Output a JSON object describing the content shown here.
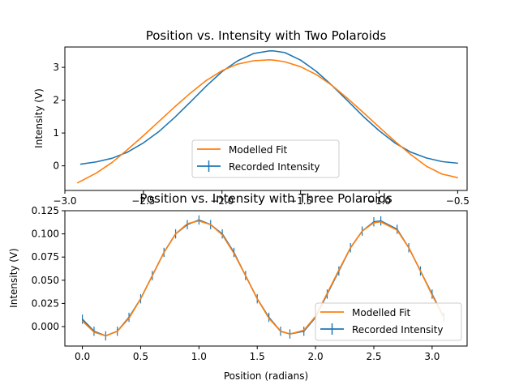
{
  "figure": {
    "background": "#ffffff"
  },
  "chart_data": [
    {
      "type": "line",
      "title": "Position vs. Intensity with Two Polaroids",
      "xlabel": "",
      "ylabel": "Intensity (V)",
      "xlim": [
        -3.0,
        -0.44
      ],
      "ylim": [
        -0.75,
        3.62
      ],
      "xticks": [
        -3.0,
        -2.5,
        -2.0,
        -1.5,
        -1.0,
        -0.5
      ],
      "xtick_labels": [
        "−3.0",
        "−2.5",
        "−2.0",
        "−1.5",
        "−1.0",
        "−0.5"
      ],
      "yticks": [
        0,
        1,
        2,
        3
      ],
      "ytick_labels": [
        "0",
        "1",
        "2",
        "3"
      ],
      "grid": false,
      "legend_position": "lower-center",
      "series": [
        {
          "name": "Recorded Intensity",
          "color": "#1f77b4",
          "kind": "errorbar-line",
          "x": [
            -2.9,
            -2.8,
            -2.7,
            -2.6,
            -2.5,
            -2.4,
            -2.3,
            -2.2,
            -2.1,
            -2.0,
            -1.9,
            -1.8,
            -1.7,
            -1.67,
            -1.6,
            -1.5,
            -1.4,
            -1.3,
            -1.2,
            -1.1,
            -1.0,
            -0.9,
            -0.8,
            -0.7,
            -0.6,
            -0.5
          ],
          "y": [
            0.05,
            0.12,
            0.23,
            0.42,
            0.7,
            1.05,
            1.48,
            1.95,
            2.43,
            2.87,
            3.2,
            3.42,
            3.5,
            3.5,
            3.45,
            3.22,
            2.88,
            2.45,
            1.98,
            1.5,
            1.07,
            0.7,
            0.42,
            0.24,
            0.13,
            0.08
          ]
        },
        {
          "name": "Modelled Fit",
          "color": "#ff7f0e",
          "kind": "line",
          "x": [
            -2.92,
            -2.8,
            -2.7,
            -2.6,
            -2.5,
            -2.4,
            -2.3,
            -2.2,
            -2.1,
            -2.0,
            -1.9,
            -1.8,
            -1.7,
            -1.67,
            -1.6,
            -1.5,
            -1.4,
            -1.3,
            -1.2,
            -1.1,
            -1.0,
            -0.9,
            -0.8,
            -0.7,
            -0.6,
            -0.5
          ],
          "y": [
            -0.52,
            -0.22,
            0.1,
            0.5,
            0.92,
            1.36,
            1.8,
            2.22,
            2.6,
            2.9,
            3.1,
            3.2,
            3.23,
            3.22,
            3.17,
            3.02,
            2.78,
            2.45,
            2.05,
            1.62,
            1.18,
            0.75,
            0.35,
            -0.01,
            -0.25,
            -0.36
          ]
        }
      ]
    },
    {
      "type": "line",
      "title": "Position vs. Intensity with Three Polaroids",
      "xlabel": "Position (radians)",
      "ylabel": "Intensity (V)",
      "xlim": [
        -0.15,
        3.3
      ],
      "ylim": [
        -0.021,
        0.125
      ],
      "xticks": [
        0.0,
        0.5,
        1.0,
        1.5,
        2.0,
        2.5,
        3.0
      ],
      "xtick_labels": [
        "0.0",
        "0.5",
        "1.0",
        "1.5",
        "2.0",
        "2.5",
        "3.0"
      ],
      "yticks": [
        0.0,
        0.025,
        0.05,
        0.075,
        0.1,
        0.125
      ],
      "ytick_labels": [
        "0.000",
        "0.025",
        "0.050",
        "0.075",
        "0.100",
        "0.125"
      ],
      "grid": false,
      "legend_position": "lower-right",
      "series": [
        {
          "name": "Recorded Intensity",
          "color": "#1f77b4",
          "kind": "errorbar-line",
          "x": [
            0.0,
            0.1,
            0.2,
            0.3,
            0.4,
            0.5,
            0.6,
            0.7,
            0.8,
            0.9,
            1.0,
            1.1,
            1.2,
            1.3,
            1.4,
            1.5,
            1.6,
            1.7,
            1.78,
            1.9,
            2.0,
            2.1,
            2.2,
            2.3,
            2.4,
            2.5,
            2.56,
            2.7,
            2.8,
            2.9,
            3.0,
            3.1
          ],
          "y": [
            0.008,
            -0.005,
            -0.01,
            -0.005,
            0.01,
            0.03,
            0.055,
            0.08,
            0.1,
            0.11,
            0.115,
            0.11,
            0.1,
            0.08,
            0.055,
            0.03,
            0.01,
            -0.005,
            -0.008,
            -0.005,
            0.01,
            0.035,
            0.06,
            0.085,
            0.103,
            0.113,
            0.114,
            0.105,
            0.085,
            0.06,
            0.035,
            0.01
          ],
          "error": 0.005
        },
        {
          "name": "Modelled Fit",
          "color": "#ff7f0e",
          "kind": "line",
          "x": [
            0.0,
            0.1,
            0.2,
            0.3,
            0.4,
            0.5,
            0.6,
            0.7,
            0.8,
            0.9,
            1.0,
            1.1,
            1.2,
            1.3,
            1.4,
            1.5,
            1.6,
            1.7,
            1.78,
            1.9,
            2.0,
            2.1,
            2.2,
            2.3,
            2.4,
            2.5,
            2.56,
            2.7,
            2.8,
            2.9,
            3.0,
            3.1
          ],
          "y": [
            0.006,
            -0.006,
            -0.01,
            -0.005,
            0.009,
            0.03,
            0.055,
            0.08,
            0.1,
            0.111,
            0.114,
            0.11,
            0.099,
            0.079,
            0.055,
            0.03,
            0.009,
            -0.005,
            -0.008,
            -0.004,
            0.011,
            0.036,
            0.061,
            0.085,
            0.103,
            0.112,
            0.113,
            0.104,
            0.085,
            0.06,
            0.034,
            0.01
          ]
        }
      ]
    }
  ]
}
